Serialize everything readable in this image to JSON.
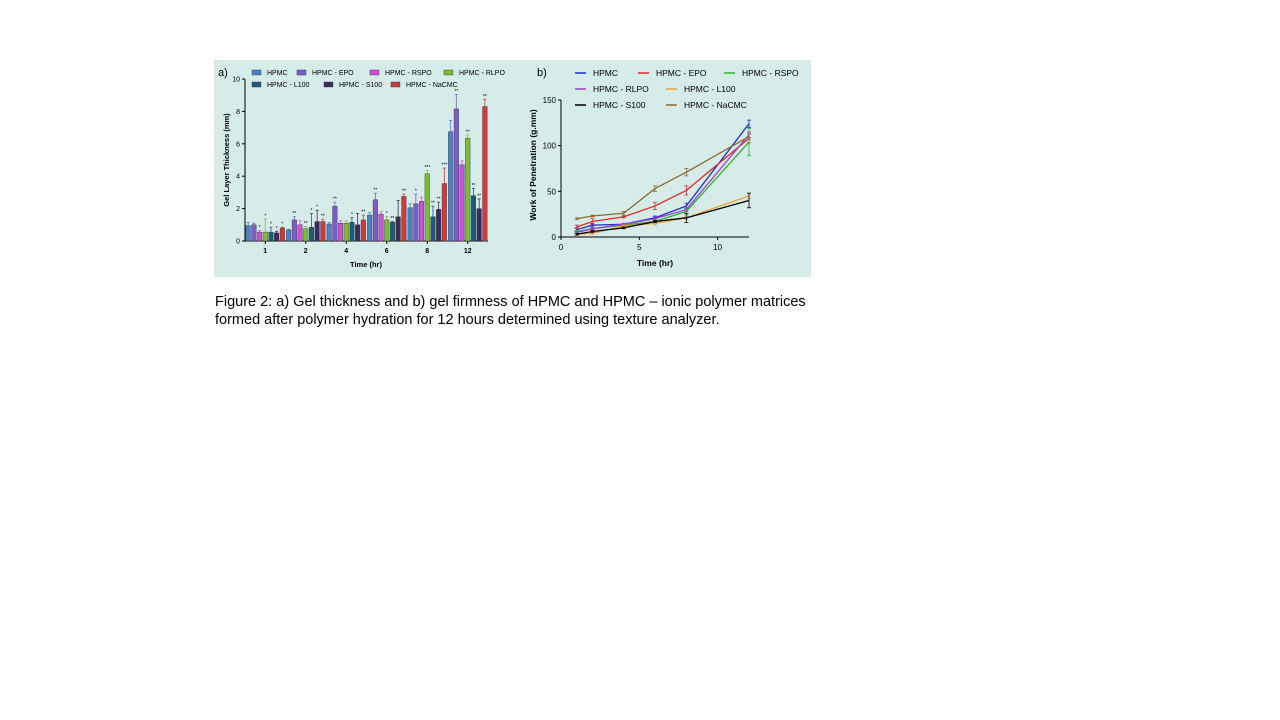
{
  "caption": "Figure 2: a) Gel thickness and b) gel firmness of HPMC and HPMC – ionic polymer matrices formed after polymer hydration for 12 hours determined using texture analyzer.",
  "chart_data": [
    {
      "type": "bar",
      "panel_label": "a)",
      "xlabel": "Time (hr)",
      "ylabel": "Gel Layer Thickness (mm)",
      "ylim": [
        0,
        10
      ],
      "yticks": [
        0,
        2,
        4,
        6,
        8,
        10
      ],
      "categories": [
        "1",
        "2",
        "4",
        "6",
        "8",
        "12"
      ],
      "legend": "top",
      "series": [
        {
          "name": "HPMC",
          "color": "#4f7fc4",
          "values": [
            0.95,
            0.68,
            1.05,
            1.6,
            2.05,
            6.75
          ],
          "errors": [
            0.2,
            0.05,
            0.1,
            0.15,
            0.25,
            0.7
          ],
          "sig": [
            "",
            "",
            "",
            "",
            "",
            ""
          ]
        },
        {
          "name": "HPMC - EPO",
          "color": "#7b5cc9",
          "values": [
            1.0,
            1.3,
            2.15,
            2.55,
            2.3,
            8.15
          ],
          "errors": [
            0.1,
            0.2,
            0.25,
            0.4,
            0.6,
            0.9
          ],
          "sig": [
            "",
            "**",
            "**",
            "**",
            "*",
            "**"
          ]
        },
        {
          "name": "HPMC - RSPO",
          "color": "#d04fd9",
          "values": [
            0.55,
            1.0,
            1.1,
            1.65,
            2.45,
            4.7
          ],
          "errors": [
            0.1,
            0.25,
            0.15,
            0.15,
            0.25,
            0.25
          ],
          "sig": [
            "*",
            "",
            "",
            "",
            "",
            ""
          ]
        },
        {
          "name": "HPMC - RLPO",
          "color": "#7dbb3c",
          "values": [
            0.55,
            0.75,
            1.1,
            1.3,
            4.15,
            6.35
          ],
          "errors": [
            0.8,
            0.15,
            0.15,
            0.2,
            0.2,
            0.2
          ],
          "sig": [
            "*",
            "**",
            "",
            "*",
            "***",
            "**"
          ]
        },
        {
          "name": "HPMC - L100",
          "color": "#1d5a78",
          "values": [
            0.55,
            0.85,
            1.15,
            1.15,
            1.5,
            2.8
          ],
          "errors": [
            0.3,
            0.85,
            0.3,
            0.05,
            0.65,
            0.45
          ],
          "sig": [
            "*",
            "*",
            "*",
            "**",
            "**",
            "**"
          ]
        },
        {
          "name": "HPMC - S100",
          "color": "#3b2a5e",
          "values": [
            0.5,
            1.2,
            1.0,
            1.5,
            1.95,
            2.0
          ],
          "errors": [
            0.1,
            0.7,
            0.7,
            1.0,
            0.45,
            0.6
          ],
          "sig": [
            "*",
            "*",
            "",
            "",
            "**",
            "**"
          ]
        },
        {
          "name": "HPMC - NaCMC",
          "color": "#d03a3a",
          "values": [
            0.8,
            1.2,
            1.3,
            2.75,
            3.55,
            8.3
          ],
          "errors": [
            0.05,
            0.15,
            0.3,
            0.15,
            0.95,
            0.45
          ],
          "sig": [
            "*",
            "**",
            "**",
            "**",
            "***",
            "**"
          ]
        }
      ]
    },
    {
      "type": "line",
      "panel_label": "b)",
      "xlabel": "Time (hr)",
      "ylabel": "Work of Penetration (g.mm)",
      "xlim": [
        0,
        12
      ],
      "ylim": [
        0,
        150
      ],
      "xticks": [
        0,
        5,
        10
      ],
      "yticks": [
        0,
        50,
        100,
        150
      ],
      "legend": "top",
      "x": [
        1,
        2,
        4,
        6,
        8,
        12
      ],
      "series": [
        {
          "name": "HPMC",
          "color": "#1f2fd0",
          "values": [
            8,
            13,
            14,
            21,
            34,
            124
          ],
          "errors": [
            2,
            2,
            1,
            2,
            3,
            4
          ]
        },
        {
          "name": "HPMC - EPO",
          "color": "#e02a2a",
          "values": [
            11,
            17,
            22,
            34,
            51,
            108
          ],
          "errors": [
            2,
            3,
            1,
            4,
            5,
            5
          ]
        },
        {
          "name": "HPMC - RSPO",
          "color": "#2ab52a",
          "values": [
            6,
            9,
            13,
            17,
            28,
            104
          ],
          "errors": [
            1,
            1,
            1,
            2,
            3,
            15
          ]
        },
        {
          "name": "HPMC - RLPO",
          "color": "#a040d0",
          "values": [
            5,
            9,
            14,
            20,
            30,
            112
          ],
          "errors": [
            1,
            1,
            1,
            2,
            2,
            3
          ]
        },
        {
          "name": "HPMC - L100",
          "color": "#f0a030",
          "values": [
            3,
            4,
            12,
            15,
            21,
            45
          ],
          "errors": [
            1,
            1,
            1,
            2,
            2,
            3
          ]
        },
        {
          "name": "HPMC - S100",
          "color": "#000000",
          "values": [
            3,
            6,
            10,
            17,
            21,
            40
          ],
          "errors": [
            1,
            1,
            1,
            1,
            5,
            8
          ]
        },
        {
          "name": "HPMC - NaCMC",
          "color": "#8a6a30",
          "values": [
            20,
            23,
            26,
            53,
            71,
            110
          ],
          "errors": [
            1,
            1,
            2,
            3,
            4,
            3
          ]
        }
      ]
    }
  ]
}
